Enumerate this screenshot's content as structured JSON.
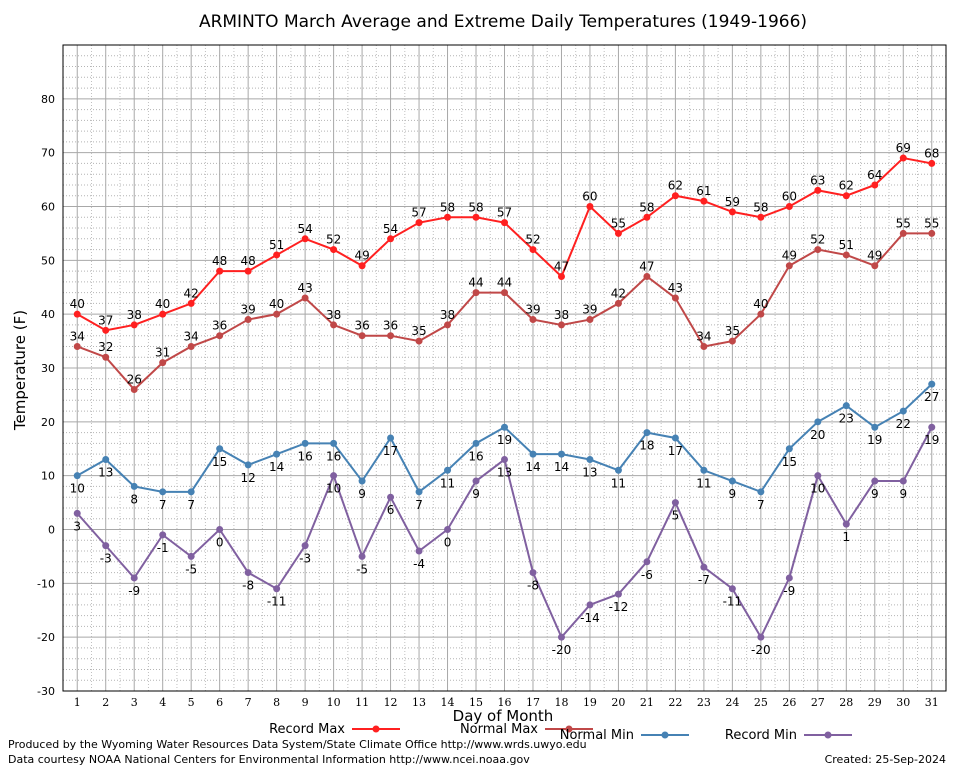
{
  "title": "ARMINTO March Average and Extreme Daily Temperatures (1949-1966)",
  "footer": {
    "produced_by": "Produced by the Wyoming Water Resources Data System/State Climate Office http://www.wrds.uwyo.edu",
    "courtesy": "Data courtesy NOAA National Centers for Environmental Information http://www.ncei.noaa.gov",
    "created": "Created:  25-Sep-2024"
  },
  "chart_data": {
    "type": "line",
    "title": "ARMINTO March Average and Extreme Daily Temperatures (1949-1966)",
    "xlabel": "Day of Month",
    "ylabel": "Temperature (F)",
    "x": [
      1,
      2,
      3,
      4,
      5,
      6,
      7,
      8,
      9,
      10,
      11,
      12,
      13,
      14,
      15,
      16,
      17,
      18,
      19,
      20,
      21,
      22,
      23,
      24,
      25,
      26,
      27,
      28,
      29,
      30,
      31
    ],
    "ylim": [
      -30,
      90
    ],
    "yticks": [
      -30,
      -20,
      -10,
      0,
      10,
      20,
      30,
      40,
      50,
      60,
      70,
      80
    ],
    "grid": true,
    "legend_position": "bottom",
    "series": [
      {
        "name": "Record Max",
        "color": "#ff2020",
        "label_pos": "above",
        "values": [
          40,
          37,
          38,
          40,
          42,
          48,
          48,
          51,
          54,
          52,
          49,
          54,
          57,
          58,
          58,
          57,
          52,
          47,
          60,
          55,
          58,
          62,
          61,
          59,
          58,
          60,
          63,
          62,
          64,
          69,
          68
        ]
      },
      {
        "name": "Normal Max",
        "color": "#c04848",
        "label_pos": "above",
        "values": [
          34,
          32,
          26,
          31,
          34,
          36,
          39,
          40,
          43,
          38,
          36,
          36,
          35,
          38,
          44,
          44,
          39,
          38,
          39,
          42,
          47,
          43,
          34,
          35,
          40,
          49,
          52,
          51,
          49,
          55,
          55
        ]
      },
      {
        "name": "Normal Min",
        "color": "#4682b4",
        "label_pos": "below",
        "values": [
          10,
          13,
          8,
          7,
          7,
          15,
          12,
          14,
          16,
          16,
          9,
          17,
          7,
          11,
          16,
          19,
          14,
          14,
          13,
          11,
          18,
          17,
          11,
          9,
          7,
          15,
          20,
          23,
          19,
          22,
          27
        ]
      },
      {
        "name": "Record Min",
        "color": "#8060a0",
        "label_pos": "below",
        "values": [
          3,
          -3,
          -9,
          -1,
          -5,
          0,
          -8,
          -11,
          -3,
          10,
          -5,
          6,
          -4,
          0,
          9,
          13,
          -8,
          -20,
          -14,
          -12,
          -6,
          5,
          -7,
          -11,
          -20,
          -9,
          10,
          1,
          9,
          9,
          19
        ]
      }
    ]
  }
}
